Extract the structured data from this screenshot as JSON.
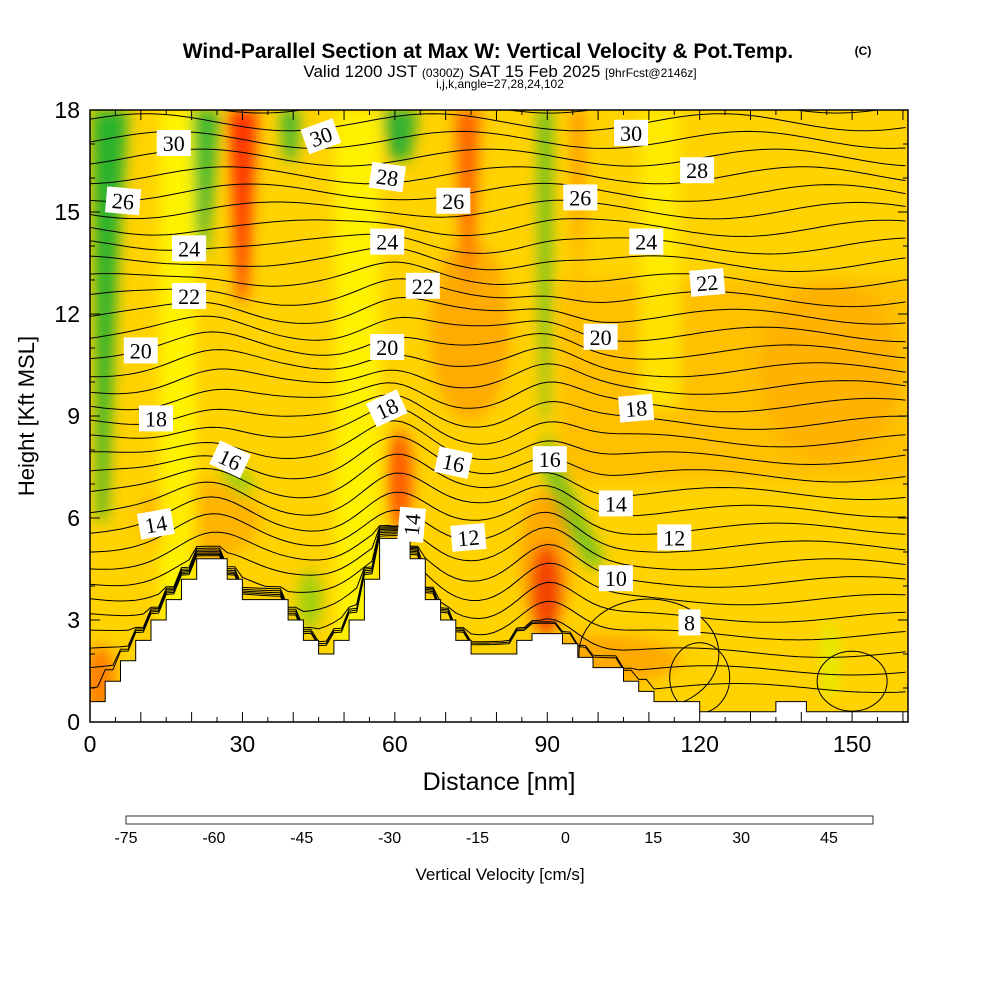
{
  "chart_data": {
    "type": "heatmap",
    "title": "Wind-Parallel Section at Max W: Vertical Velocity & Pot.Temp.",
    "title_mark": "(C)",
    "subtitle_main": "Valid 1200 JST",
    "subtitle_z": "(0300Z)",
    "subtitle_date": "SAT 15 Feb 2025",
    "subtitle_fcst": "[9hrFcst@2146z]",
    "subtitle_ijk": "i,j,k,angle=27,28,24,102",
    "xlabel": "Distance [nm]",
    "ylabel": "Height [Kft MSL]",
    "xlim": [
      0,
      161
    ],
    "ylim": [
      0,
      18
    ],
    "x_ticks": [
      0,
      30,
      60,
      90,
      120,
      150
    ],
    "x_tick_labels": [
      "0",
      "30",
      "60",
      "90",
      "120",
      "150"
    ],
    "y_ticks": [
      0,
      3,
      6,
      9,
      12,
      15,
      18
    ],
    "y_tick_labels": [
      "0",
      "3",
      "6",
      "9",
      "12",
      "15",
      "18"
    ],
    "colorbar": {
      "label": "Vertical Velocity [cm/s]",
      "min": -75,
      "max": 52.5,
      "tick_values": [
        -75,
        -60,
        -45,
        -30,
        -15,
        0,
        15,
        30,
        45
      ],
      "tick_labels": [
        "-75",
        "-60",
        "-45",
        "-30",
        "-15",
        "0",
        "15",
        "30",
        "45"
      ],
      "colors": [
        "#0000e6",
        "#0040f0",
        "#0078f0",
        "#00aaee",
        "#00dcdc",
        "#00d2a0",
        "#00c060",
        "#20b030",
        "#60c020",
        "#a0d010",
        "#e0f000",
        "#ffff00",
        "#ffe000",
        "#ffc000",
        "#ffa000",
        "#ff8000",
        "#ff5a00",
        "#ff2a00",
        "#e60000",
        "#c80028",
        "#a00050",
        "#800078"
      ]
    },
    "terrain": [
      [
        0,
        0.6
      ],
      [
        3,
        0.6
      ],
      [
        3,
        1.2
      ],
      [
        6,
        1.2
      ],
      [
        6,
        1.8
      ],
      [
        9,
        1.8
      ],
      [
        9,
        2.4
      ],
      [
        12,
        2.4
      ],
      [
        12,
        3.0
      ],
      [
        15,
        3.0
      ],
      [
        15,
        3.6
      ],
      [
        18,
        3.6
      ],
      [
        18,
        4.2
      ],
      [
        21,
        4.2
      ],
      [
        21,
        4.8
      ],
      [
        27,
        4.8
      ],
      [
        27,
        4.2
      ],
      [
        30,
        4.2
      ],
      [
        30,
        3.6
      ],
      [
        39,
        3.6
      ],
      [
        39,
        3.0
      ],
      [
        42,
        3.0
      ],
      [
        42,
        2.4
      ],
      [
        45,
        2.4
      ],
      [
        45,
        2.0
      ],
      [
        48,
        2.0
      ],
      [
        48,
        2.4
      ],
      [
        51,
        2.4
      ],
      [
        51,
        3.0
      ],
      [
        54,
        3.0
      ],
      [
        54,
        4.2
      ],
      [
        57,
        4.2
      ],
      [
        57,
        5.4
      ],
      [
        63,
        5.4
      ],
      [
        63,
        4.8
      ],
      [
        66,
        4.8
      ],
      [
        66,
        3.6
      ],
      [
        69,
        3.6
      ],
      [
        69,
        3.0
      ],
      [
        72,
        3.0
      ],
      [
        72,
        2.4
      ],
      [
        75,
        2.4
      ],
      [
        75,
        2.0
      ],
      [
        84,
        2.0
      ],
      [
        84,
        2.4
      ],
      [
        87,
        2.4
      ],
      [
        87,
        2.6
      ],
      [
        93,
        2.6
      ],
      [
        93,
        2.3
      ],
      [
        96,
        2.3
      ],
      [
        96,
        1.9
      ],
      [
        99,
        1.9
      ],
      [
        99,
        1.6
      ],
      [
        105,
        1.6
      ],
      [
        105,
        1.2
      ],
      [
        108,
        1.2
      ],
      [
        108,
        0.9
      ],
      [
        111,
        0.9
      ],
      [
        111,
        0.6
      ],
      [
        120,
        0.6
      ],
      [
        120,
        0.3
      ],
      [
        135,
        0.3
      ],
      [
        135,
        0.6
      ],
      [
        141,
        0.6
      ],
      [
        141,
        0.3
      ],
      [
        161,
        0.3
      ]
    ],
    "contour_labels": [
      {
        "text": "30",
        "x": 16.5,
        "y": 17.0,
        "angle": 0
      },
      {
        "text": "30",
        "x": 45.5,
        "y": 17.2,
        "angle": -20
      },
      {
        "text": "28",
        "x": 58.5,
        "y": 16.0,
        "angle": 8
      },
      {
        "text": "30",
        "x": 106.5,
        "y": 17.3,
        "angle": 0
      },
      {
        "text": "28",
        "x": 119.5,
        "y": 16.2,
        "angle": 0
      },
      {
        "text": "26",
        "x": 6.5,
        "y": 15.3,
        "angle": 5
      },
      {
        "text": "26",
        "x": 71.5,
        "y": 15.3,
        "angle": 0
      },
      {
        "text": "26",
        "x": 96.5,
        "y": 15.4,
        "angle": 0
      },
      {
        "text": "24",
        "x": 19.5,
        "y": 13.9,
        "angle": 0
      },
      {
        "text": "24",
        "x": 58.5,
        "y": 14.1,
        "angle": 0
      },
      {
        "text": "24",
        "x": 109.5,
        "y": 14.1,
        "angle": 0
      },
      {
        "text": "22",
        "x": 19.5,
        "y": 12.5,
        "angle": 0
      },
      {
        "text": "22",
        "x": 65.5,
        "y": 12.8,
        "angle": 0
      },
      {
        "text": "22",
        "x": 121.5,
        "y": 12.9,
        "angle": -5
      },
      {
        "text": "20",
        "x": 10.0,
        "y": 10.9,
        "angle": 0
      },
      {
        "text": "20",
        "x": 58.5,
        "y": 11.0,
        "angle": 0
      },
      {
        "text": "20",
        "x": 100.5,
        "y": 11.3,
        "angle": 0
      },
      {
        "text": "18",
        "x": 13.0,
        "y": 8.9,
        "angle": 0
      },
      {
        "text": "18",
        "x": 58.5,
        "y": 9.2,
        "angle": -25
      },
      {
        "text": "18",
        "x": 107.5,
        "y": 9.2,
        "angle": -5
      },
      {
        "text": "16",
        "x": 27.5,
        "y": 7.7,
        "angle": 25
      },
      {
        "text": "16",
        "x": 71.5,
        "y": 7.6,
        "angle": 12
      },
      {
        "text": "16",
        "x": 90.5,
        "y": 7.7,
        "angle": 0
      },
      {
        "text": "14",
        "x": 13.0,
        "y": 5.8,
        "angle": -10
      },
      {
        "text": "14",
        "x": 63.5,
        "y": 5.8,
        "angle": -85
      },
      {
        "text": "14",
        "x": 103.5,
        "y": 6.4,
        "angle": 0
      },
      {
        "text": "12",
        "x": 74.5,
        "y": 5.4,
        "angle": -5
      },
      {
        "text": "12",
        "x": 115.0,
        "y": 5.4,
        "angle": 0
      },
      {
        "text": "10",
        "x": 103.5,
        "y": 4.2,
        "angle": 0
      },
      {
        "text": "8",
        "x": 118.0,
        "y": 2.9,
        "angle": 0
      }
    ]
  }
}
